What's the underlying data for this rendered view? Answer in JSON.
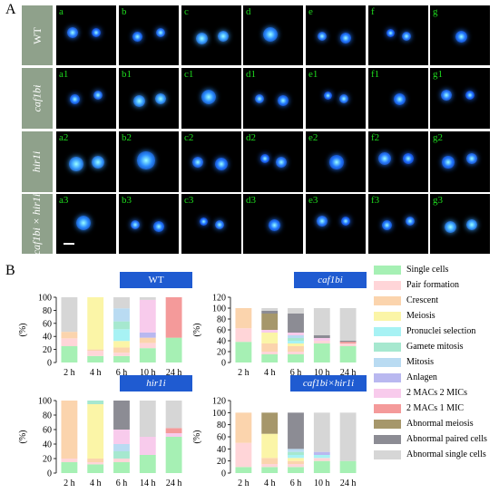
{
  "panel_a": {
    "letter": "A",
    "rows": [
      {
        "label": "WT",
        "cells": [
          "a",
          "b",
          "c",
          "d",
          "e",
          "f",
          "g"
        ]
      },
      {
        "label": "caf1bi",
        "cells": [
          "a1",
          "b1",
          "c1",
          "d1",
          "e1",
          "f1",
          "g1"
        ]
      },
      {
        "label": "hir1i",
        "cells": [
          "a2",
          "b2",
          "c2",
          "d2",
          "e2",
          "f2",
          "g2"
        ]
      },
      {
        "label": "caf1bi × hir1i",
        "cells": [
          "a3",
          "b3",
          "c3",
          "d3",
          "e3",
          "f3",
          "g3"
        ]
      }
    ]
  },
  "panel_b": {
    "letter": "B"
  },
  "legend": [
    {
      "label": "Single cells",
      "color": "#a6f0b4"
    },
    {
      "label": "Pair formation",
      "color": "#ffd5d8"
    },
    {
      "label": "Crescent",
      "color": "#fbd4ad"
    },
    {
      "label": "Meiosis",
      "color": "#fbf5a7"
    },
    {
      "label": "Pronuclei selection",
      "color": "#a7f2f4"
    },
    {
      "label": "Gamete mitosis",
      "color": "#a6e8cf"
    },
    {
      "label": "Mitosis",
      "color": "#b9dbf2"
    },
    {
      "label": "Anlagen",
      "color": "#b9b8f0"
    },
    {
      "label": "2 MACs 2 MICs",
      "color": "#f8cbec"
    },
    {
      "label": "2 MACs 1 MIC",
      "color": "#f49a9a"
    },
    {
      "label": "Abnormal meiosis",
      "color": "#a6976b"
    },
    {
      "label": "Abnormal paired cells",
      "color": "#8c8c94"
    },
    {
      "label": "Abnormal single cells",
      "color": "#d6d6d6"
    }
  ],
  "chart_data": [
    {
      "type": "bar",
      "stacked": true,
      "title": "WT",
      "ylabel": "(%)",
      "ylim": [
        0,
        100
      ],
      "yticks": [
        0,
        20,
        40,
        60,
        80,
        100
      ],
      "categories": [
        "2 h",
        "4 h",
        "6 h",
        "10 h",
        "24 h"
      ],
      "series": [
        {
          "name": "Single cells",
          "values": [
            25,
            10,
            10,
            22,
            38
          ]
        },
        {
          "name": "Pair formation",
          "values": [
            12,
            8,
            5,
            8,
            0
          ]
        },
        {
          "name": "Crescent",
          "values": [
            10,
            2,
            8,
            8,
            0
          ]
        },
        {
          "name": "Meiosis",
          "values": [
            0,
            80,
            10,
            0,
            0
          ]
        },
        {
          "name": "Pronuclei selection",
          "values": [
            0,
            0,
            18,
            0,
            0
          ]
        },
        {
          "name": "Gamete mitosis",
          "values": [
            0,
            0,
            12,
            0,
            0
          ]
        },
        {
          "name": "Mitosis",
          "values": [
            0,
            0,
            20,
            0,
            0
          ]
        },
        {
          "name": "Anlagen",
          "values": [
            0,
            0,
            0,
            8,
            0
          ]
        },
        {
          "name": "2 MACs 2 MICs",
          "values": [
            0,
            0,
            0,
            50,
            0
          ]
        },
        {
          "name": "2 MACs 1 MIC",
          "values": [
            0,
            0,
            0,
            0,
            62
          ]
        },
        {
          "name": "Abnormal meiosis",
          "values": [
            0,
            0,
            0,
            0,
            0
          ]
        },
        {
          "name": "Abnormal paired cells",
          "values": [
            0,
            0,
            0,
            0,
            0
          ]
        },
        {
          "name": "Abnormal single cells",
          "values": [
            53,
            0,
            17,
            4,
            0
          ]
        }
      ]
    },
    {
      "type": "bar",
      "stacked": true,
      "title": "caf1bi",
      "ylabel": "(%)",
      "ylim": [
        0,
        120
      ],
      "yticks": [
        0,
        20,
        40,
        60,
        80,
        100,
        120
      ],
      "categories": [
        "2 h",
        "4 h",
        "6 h",
        "10 h",
        "24 h"
      ],
      "series": [
        {
          "name": "Single cells",
          "values": [
            38,
            15,
            15,
            35,
            30
          ]
        },
        {
          "name": "Pair formation",
          "values": [
            25,
            5,
            5,
            5,
            5
          ]
        },
        {
          "name": "Crescent",
          "values": [
            37,
            15,
            10,
            0,
            0
          ]
        },
        {
          "name": "Meiosis",
          "values": [
            0,
            20,
            5,
            0,
            0
          ]
        },
        {
          "name": "Pronuclei selection",
          "values": [
            0,
            0,
            5,
            0,
            0
          ]
        },
        {
          "name": "Gamete mitosis",
          "values": [
            0,
            0,
            5,
            0,
            0
          ]
        },
        {
          "name": "Mitosis",
          "values": [
            0,
            0,
            5,
            0,
            0
          ]
        },
        {
          "name": "Anlagen",
          "values": [
            0,
            0,
            0,
            0,
            0
          ]
        },
        {
          "name": "2 MACs 2 MICs",
          "values": [
            0,
            5,
            5,
            5,
            0
          ]
        },
        {
          "name": "2 MACs 1 MIC",
          "values": [
            0,
            0,
            0,
            0,
            3
          ]
        },
        {
          "name": "Abnormal meiosis",
          "values": [
            0,
            30,
            0,
            0,
            0
          ]
        },
        {
          "name": "Abnormal paired cells",
          "values": [
            0,
            5,
            35,
            5,
            2
          ]
        },
        {
          "name": "Abnormal single cells",
          "values": [
            0,
            5,
            10,
            50,
            60
          ]
        }
      ]
    },
    {
      "type": "bar",
      "stacked": true,
      "title": "hir1i",
      "ylabel": "(%)",
      "ylim": [
        0,
        100
      ],
      "yticks": [
        0,
        20,
        40,
        60,
        80,
        100
      ],
      "categories": [
        "2 h",
        "4 h",
        "6 h",
        "14 h",
        "24 h"
      ],
      "series": [
        {
          "name": "Single cells",
          "values": [
            15,
            12,
            15,
            25,
            50
          ]
        },
        {
          "name": "Pair formation",
          "values": [
            5,
            3,
            5,
            0,
            0
          ]
        },
        {
          "name": "Crescent",
          "values": [
            80,
            5,
            0,
            0,
            0
          ]
        },
        {
          "name": "Meiosis",
          "values": [
            0,
            75,
            0,
            0,
            0
          ]
        },
        {
          "name": "Pronuclei selection",
          "values": [
            0,
            0,
            0,
            0,
            0
          ]
        },
        {
          "name": "Gamete mitosis",
          "values": [
            0,
            5,
            10,
            0,
            0
          ]
        },
        {
          "name": "Mitosis",
          "values": [
            0,
            0,
            10,
            0,
            0
          ]
        },
        {
          "name": "Anlagen",
          "values": [
            0,
            0,
            0,
            0,
            0
          ]
        },
        {
          "name": "2 MACs 2 MICs",
          "values": [
            0,
            0,
            20,
            25,
            5
          ]
        },
        {
          "name": "2 MACs 1 MIC",
          "values": [
            0,
            0,
            0,
            0,
            7
          ]
        },
        {
          "name": "Abnormal meiosis",
          "values": [
            0,
            0,
            0,
            0,
            0
          ]
        },
        {
          "name": "Abnormal paired cells",
          "values": [
            0,
            0,
            40,
            0,
            0
          ]
        },
        {
          "name": "Abnormal single cells",
          "values": [
            0,
            0,
            0,
            50,
            38
          ]
        }
      ]
    },
    {
      "type": "bar",
      "stacked": true,
      "title": "caf1bi×hir1i",
      "ylabel": "(%)",
      "ylim": [
        0,
        120
      ],
      "yticks": [
        0,
        20,
        40,
        60,
        80,
        100,
        120
      ],
      "categories": [
        "2 h",
        "4 h",
        "6 h",
        "10 h",
        "24 h"
      ],
      "series": [
        {
          "name": "Single cells",
          "values": [
            10,
            10,
            10,
            20,
            20
          ]
        },
        {
          "name": "Pair formation",
          "values": [
            40,
            5,
            5,
            5,
            0
          ]
        },
        {
          "name": "Crescent",
          "values": [
            50,
            10,
            5,
            0,
            0
          ]
        },
        {
          "name": "Meiosis",
          "values": [
            0,
            40,
            5,
            0,
            0
          ]
        },
        {
          "name": "Pronuclei selection",
          "values": [
            0,
            0,
            5,
            5,
            0
          ]
        },
        {
          "name": "Gamete mitosis",
          "values": [
            0,
            0,
            5,
            0,
            0
          ]
        },
        {
          "name": "Mitosis",
          "values": [
            0,
            0,
            5,
            0,
            0
          ]
        },
        {
          "name": "Anlagen",
          "values": [
            0,
            0,
            0,
            5,
            0
          ]
        },
        {
          "name": "2 MACs 2 MICs",
          "values": [
            0,
            0,
            0,
            0,
            0
          ]
        },
        {
          "name": "2 MACs 1 MIC",
          "values": [
            0,
            0,
            0,
            0,
            0
          ]
        },
        {
          "name": "Abnormal meiosis",
          "values": [
            0,
            35,
            0,
            0,
            0
          ]
        },
        {
          "name": "Abnormal paired cells",
          "values": [
            0,
            0,
            60,
            0,
            0
          ]
        },
        {
          "name": "Abnormal single cells",
          "values": [
            0,
            0,
            0,
            65,
            80
          ]
        }
      ]
    }
  ]
}
